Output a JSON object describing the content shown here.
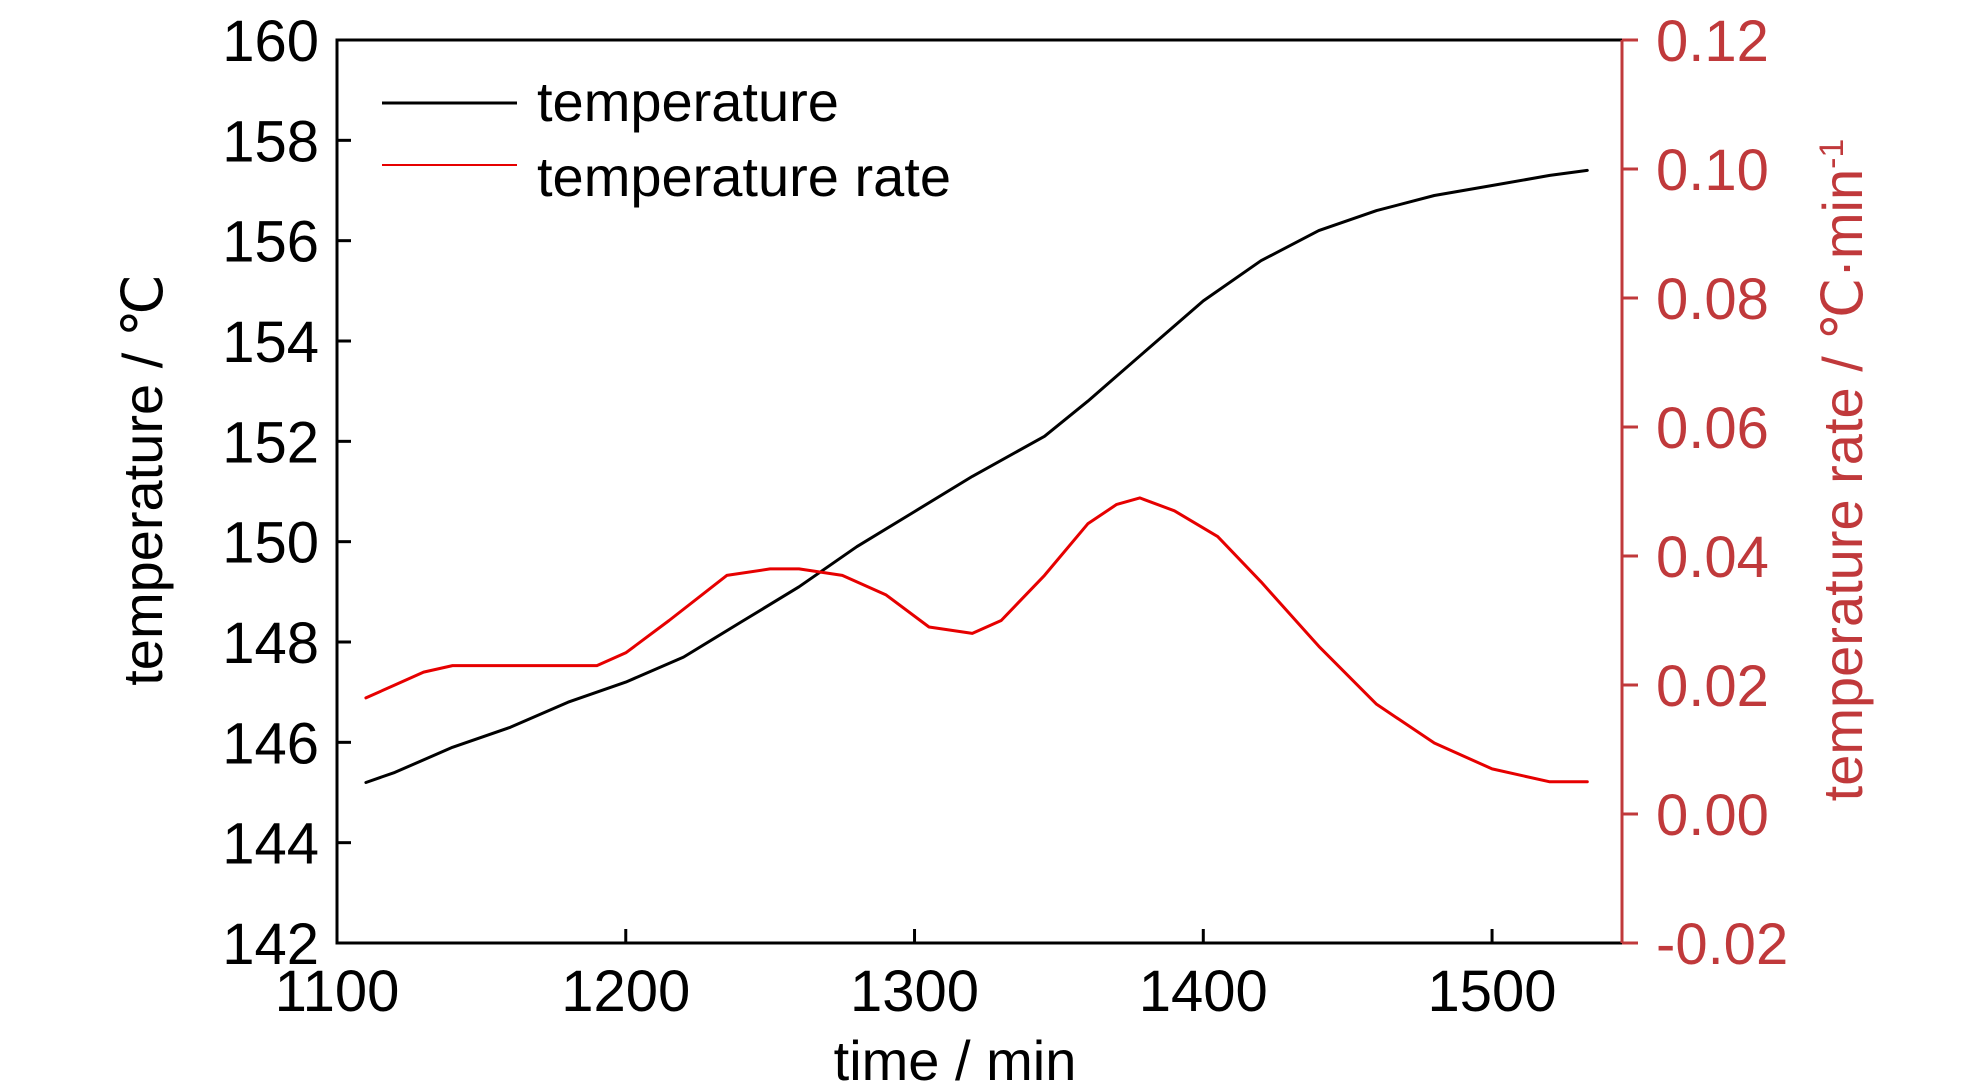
{
  "chart_data": {
    "type": "line",
    "xlabel": "time / min",
    "ylabel_left": "temperature / ℃",
    "ylabel_right_main": "temperature rate / ℃·min",
    "ylabel_right_sup": "-1",
    "xlim": [
      1100,
      1545
    ],
    "ylim_left": [
      142,
      160
    ],
    "ylim_right": [
      -0.02,
      0.12
    ],
    "x_ticks": [
      "1100",
      "1200",
      "1300",
      "1400",
      "1500"
    ],
    "y_left_ticks": [
      "142",
      "144",
      "146",
      "148",
      "150",
      "152",
      "154",
      "156",
      "158",
      "160"
    ],
    "y_right_ticks": [
      "-0.02",
      "0.00",
      "0.02",
      "0.04",
      "0.06",
      "0.08",
      "0.10",
      "0.12"
    ],
    "grid": false,
    "legend_position": "top-left",
    "colors": {
      "temperature": "#000000",
      "rate": "#e60000",
      "right_axis": "#c0393b"
    },
    "series": [
      {
        "name": "temperature",
        "axis": "left",
        "x": [
          1110,
          1120,
          1140,
          1160,
          1180,
          1200,
          1220,
          1240,
          1260,
          1280,
          1300,
          1320,
          1345,
          1360,
          1380,
          1400,
          1420,
          1440,
          1460,
          1480,
          1500,
          1520,
          1533
        ],
        "y": [
          145.2,
          145.4,
          145.9,
          146.3,
          146.8,
          147.2,
          147.7,
          148.4,
          149.1,
          149.9,
          150.6,
          151.3,
          152.1,
          152.8,
          153.8,
          154.8,
          155.6,
          156.2,
          156.6,
          156.9,
          157.1,
          157.3,
          157.4
        ]
      },
      {
        "name": "temperature rate",
        "axis": "right",
        "x": [
          1110,
          1120,
          1130,
          1140,
          1150,
          1160,
          1175,
          1190,
          1200,
          1215,
          1235,
          1250,
          1260,
          1275,
          1290,
          1305,
          1320,
          1330,
          1345,
          1360,
          1370,
          1378,
          1390,
          1405,
          1420,
          1440,
          1460,
          1480,
          1500,
          1520,
          1533
        ],
        "y": [
          0.018,
          0.02,
          0.022,
          0.023,
          0.023,
          0.023,
          0.023,
          0.023,
          0.025,
          0.03,
          0.037,
          0.038,
          0.038,
          0.037,
          0.034,
          0.029,
          0.028,
          0.03,
          0.037,
          0.045,
          0.048,
          0.049,
          0.047,
          0.043,
          0.036,
          0.026,
          0.017,
          0.011,
          0.007,
          0.005,
          0.005
        ]
      }
    ]
  }
}
